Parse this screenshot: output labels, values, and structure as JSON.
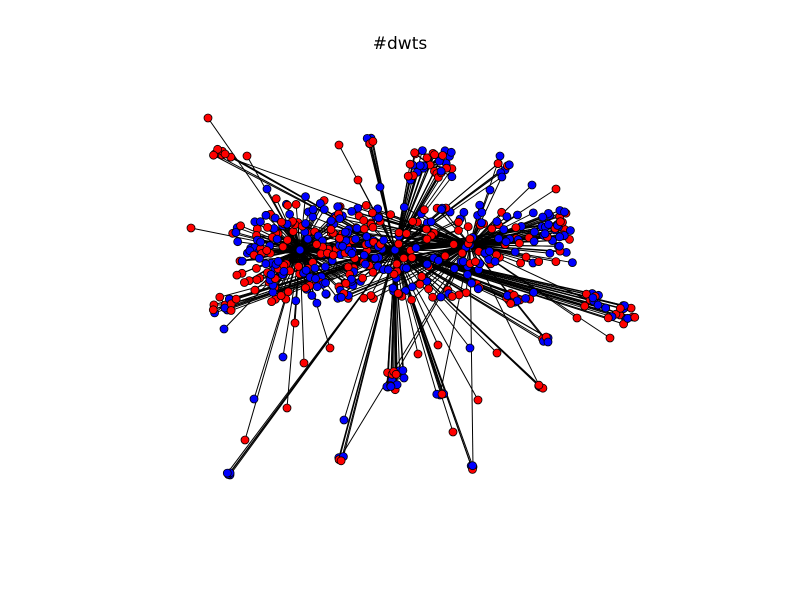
{
  "figure": {
    "title": "#dwts"
  },
  "graph": {
    "node_colors": {
      "red": "#ff0000",
      "blue": "#0000ff",
      "outline": "#000000",
      "edge": "#000000"
    }
  }
}
